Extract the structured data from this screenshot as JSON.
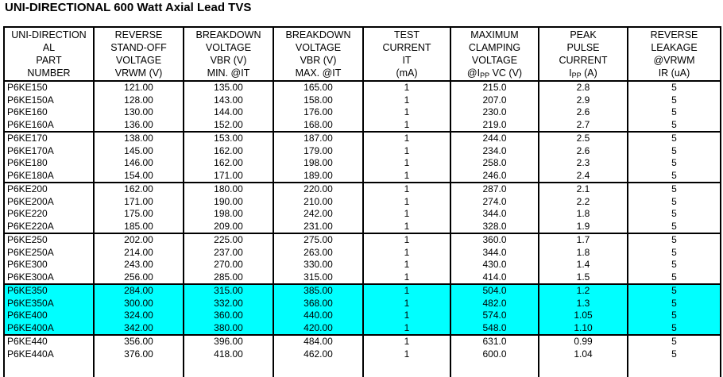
{
  "page": {
    "title": "UNI-DIRECTIONAL 600 Watt Axial Lead TVS"
  },
  "table": {
    "highlight_color": "#00FFFF",
    "columns": [
      {
        "id": "part-number",
        "header_lines": [
          "UNI-DIRECTION",
          "AL",
          "PART",
          "NUMBER"
        ]
      },
      {
        "id": "standoff-voltage",
        "header_lines": [
          "REVERSE",
          "STAND-OFF",
          "VOLTAGE",
          "VRWM (V)"
        ]
      },
      {
        "id": "breakdown-min",
        "header_lines": [
          "BREAKDOWN",
          "VOLTAGE",
          "VBR (V)",
          "MIN. @IT"
        ]
      },
      {
        "id": "breakdown-max",
        "header_lines": [
          "BREAKDOWN",
          "VOLTAGE",
          "VBR (V)",
          "MAX. @IT"
        ]
      },
      {
        "id": "test-current",
        "header_lines": [
          "TEST",
          "CURRENT",
          "IT",
          "(mA)"
        ]
      },
      {
        "id": "clamping-voltage",
        "header_lines": [
          "MAXIMUM",
          "CLAMPING",
          "VOLTAGE",
          "@I{PP} VC (V)"
        ]
      },
      {
        "id": "peak-pulse-current",
        "header_lines": [
          "PEAK",
          "PULSE",
          "CURRENT",
          "I{PP} (A)"
        ]
      },
      {
        "id": "reverse-leakage",
        "header_lines": [
          "REVERSE",
          "LEAKAGE",
          "@VRWM",
          "IR (uA)"
        ]
      }
    ],
    "groups": [
      {
        "highlight": false,
        "rows": [
          [
            "P6KE150",
            "121.00",
            "135.00",
            "165.00",
            "1",
            "215.0",
            "2.8",
            "5"
          ],
          [
            "P6KE150A",
            "128.00",
            "143.00",
            "158.00",
            "1",
            "207.0",
            "2.9",
            "5"
          ],
          [
            "P6KE160",
            "130.00",
            "144.00",
            "176.00",
            "1",
            "230.0",
            "2.6",
            "5"
          ],
          [
            "P6KE160A",
            "136.00",
            "152.00",
            "168.00",
            "1",
            "219.0",
            "2.7",
            "5"
          ]
        ]
      },
      {
        "highlight": false,
        "rows": [
          [
            "P6KE170",
            "138.00",
            "153.00",
            "187.00",
            "1",
            "244.0",
            "2.5",
            "5"
          ],
          [
            "P6KE170A",
            "145.00",
            "162.00",
            "179.00",
            "1",
            "234.0",
            "2.6",
            "5"
          ],
          [
            "P6KE180",
            "146.00",
            "162.00",
            "198.00",
            "1",
            "258.0",
            "2.3",
            "5"
          ],
          [
            "P6KE180A",
            "154.00",
            "171.00",
            "189.00",
            "1",
            "246.0",
            "2.4",
            "5"
          ]
        ]
      },
      {
        "highlight": false,
        "rows": [
          [
            "P6KE200",
            "162.00",
            "180.00",
            "220.00",
            "1",
            "287.0",
            "2.1",
            "5"
          ],
          [
            "P6KE200A",
            "171.00",
            "190.00",
            "210.00",
            "1",
            "274.0",
            "2.2",
            "5"
          ],
          [
            "P6KE220",
            "175.00",
            "198.00",
            "242.00",
            "1",
            "344.0",
            "1.8",
            "5"
          ],
          [
            "P6KE220A",
            "185.00",
            "209.00",
            "231.00",
            "1",
            "328.0",
            "1.9",
            "5"
          ]
        ]
      },
      {
        "highlight": false,
        "rows": [
          [
            "P6KE250",
            "202.00",
            "225.00",
            "275.00",
            "1",
            "360.0",
            "1.7",
            "5"
          ],
          [
            "P6KE250A",
            "214.00",
            "237.00",
            "263.00",
            "1",
            "344.0",
            "1.8",
            "5"
          ],
          [
            "P6KE300",
            "243.00",
            "270.00",
            "330.00",
            "1",
            "430.0",
            "1.4",
            "5"
          ],
          [
            "P6KE300A",
            "256.00",
            "285.00",
            "315.00",
            "1",
            "414.0",
            "1.5",
            "5"
          ]
        ]
      },
      {
        "highlight": true,
        "rows": [
          [
            "P6KE350",
            "284.00",
            "315.00",
            "385.00",
            "1",
            "504.0",
            "1.2",
            "5"
          ],
          [
            "P6KE350A",
            "300.00",
            "332.00",
            "368.00",
            "1",
            "482.0",
            "1.3",
            "5"
          ],
          [
            "P6KE400",
            "324.00",
            "360.00",
            "440.00",
            "1",
            "574.0",
            "1.05",
            "5"
          ],
          [
            "P6KE400A",
            "342.00",
            "380.00",
            "420.00",
            "1",
            "548.0",
            "1.10",
            "5"
          ]
        ]
      },
      {
        "highlight": false,
        "filler": true,
        "rows": [
          [
            "P6KE440",
            "356.00",
            "396.00",
            "484.00",
            "1",
            "631.0",
            "0.99",
            "5"
          ],
          [
            "P6KE440A",
            "376.00",
            "418.00",
            "462.00",
            "1",
            "600.0",
            "1.04",
            "5"
          ]
        ]
      }
    ]
  }
}
